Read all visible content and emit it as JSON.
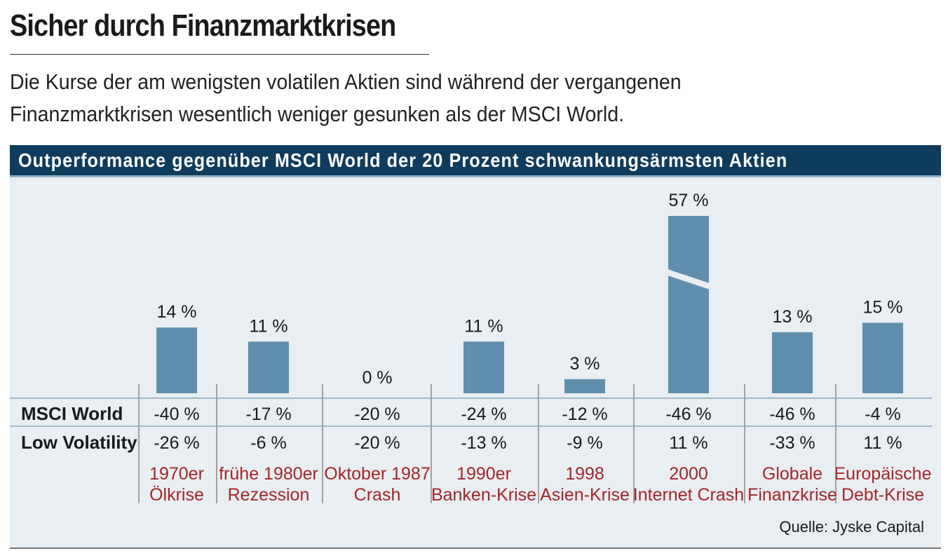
{
  "header": {
    "title": "Sicher durch Finanzmarktkrisen",
    "subtitle": "Die Kurse der am wenigsten volatilen Aktien sind während der vergangenen Finanzmarktkrisen wesentlich weniger gesunken als der MSCI World."
  },
  "chart_data": {
    "type": "bar",
    "title": "Outperformance gegenüber MSCI World der 20 Prozent schwankungsärmsten Aktien",
    "categories": [
      [
        "1970er",
        "Ölkrise"
      ],
      [
        "frühe 1980er",
        "Rezession"
      ],
      [
        "Oktober 1987",
        "Crash"
      ],
      [
        "1990er",
        "Banken-Krise"
      ],
      [
        "1998",
        "Asien-Krise"
      ],
      [
        "2000",
        "Internet Crash"
      ],
      [
        "Globale",
        "Finanzkrise"
      ],
      [
        "Europäische",
        "Debt-Krise"
      ]
    ],
    "series": [
      {
        "values": [
          14,
          11,
          0,
          11,
          3,
          57,
          13,
          15
        ],
        "labels": [
          "14 %",
          "11 %",
          "0 %",
          "11 %",
          "3 %",
          "57 %",
          "13 %",
          "15 %"
        ],
        "broken_axis": [
          false,
          false,
          false,
          false,
          false,
          true,
          false,
          false
        ]
      }
    ],
    "table": {
      "rows": [
        {
          "label": "MSCI World",
          "values": [
            "-40 %",
            "-17 %",
            "-20 %",
            "-24 %",
            "-12 %",
            "-46 %",
            "-46 %",
            "-4 %"
          ]
        },
        {
          "label": "Low Volatility",
          "values": [
            "-26 %",
            "-6 %",
            "-20 %",
            "-13 %",
            "-9 %",
            "11 %",
            "-33 %",
            "11 %"
          ]
        }
      ]
    },
    "source": "Quelle: Jyske Capital",
    "colors": {
      "bar": "#5f8fad",
      "category_text": "#a3262a",
      "banner": "#0f3c5c",
      "panel": "#e8eef2"
    }
  }
}
